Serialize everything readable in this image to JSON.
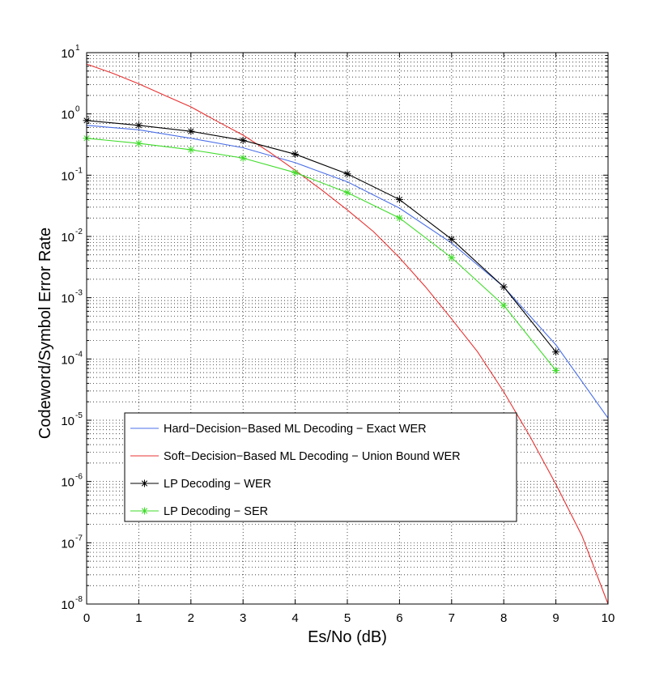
{
  "chart_data": {
    "type": "line",
    "title": "",
    "xlabel": "Es/No (dB)",
    "ylabel": "Codeword/Symbol Error Rate",
    "xlim": [
      0,
      10
    ],
    "ylim": [
      1e-08,
      10
    ],
    "yscale": "log",
    "grid": true,
    "x_ticks": [
      "0",
      "1",
      "2",
      "3",
      "4",
      "5",
      "6",
      "7",
      "8",
      "9",
      "10"
    ],
    "y_ticks": [
      {
        "base": "10",
        "exp": "1"
      },
      {
        "base": "10",
        "exp": "0"
      },
      {
        "base": "10",
        "exp": "-1"
      },
      {
        "base": "10",
        "exp": "-2"
      },
      {
        "base": "10",
        "exp": "-3"
      },
      {
        "base": "10",
        "exp": "-4"
      },
      {
        "base": "10",
        "exp": "-5"
      },
      {
        "base": "10",
        "exp": "-6"
      },
      {
        "base": "10",
        "exp": "-7"
      },
      {
        "base": "10",
        "exp": "-8"
      }
    ],
    "legend_position": "bottom-center",
    "series": [
      {
        "name": "Hard−Decision−Based ML Decoding − Exact WER",
        "color": "#4a6fe8",
        "marker": "none",
        "x": [
          0,
          1,
          2,
          3,
          4,
          5,
          6,
          7,
          8,
          9,
          10
        ],
        "y": [
          0.65,
          0.55,
          0.4,
          0.28,
          0.16,
          0.078,
          0.029,
          0.0078,
          0.0015,
          0.00017,
          1.08e-05
        ]
      },
      {
        "name": "Soft−Decision−Based ML Decoding − Union Bound WER",
        "color": "#e83030",
        "marker": "none",
        "x": [
          0,
          0.5,
          1,
          1.5,
          2,
          2.5,
          3,
          3.5,
          4,
          4.5,
          5,
          5.5,
          6,
          6.5,
          7,
          7.5,
          8,
          8.5,
          9,
          9.5,
          10
        ],
        "y": [
          6.5,
          4.6,
          3.1,
          2.0,
          1.3,
          0.76,
          0.45,
          0.24,
          0.12,
          0.058,
          0.027,
          0.012,
          0.0045,
          0.0015,
          0.00045,
          0.00013,
          2.9e-05,
          5.5e-06,
          9e-07,
          1.3e-07,
          1e-08
        ]
      },
      {
        "name": "LP Decoding − WER",
        "color": "#000000",
        "marker": "*",
        "x": [
          0,
          1,
          2,
          3,
          4,
          5,
          6,
          7,
          8,
          9
        ],
        "y": [
          0.78,
          0.65,
          0.52,
          0.37,
          0.22,
          0.105,
          0.04,
          0.009,
          0.0015,
          0.00013
        ]
      },
      {
        "name": "LP Decoding − SER",
        "color": "#3fdc2a",
        "marker": "*",
        "x": [
          0,
          1,
          2,
          3,
          4,
          5,
          6,
          7,
          8,
          9
        ],
        "y": [
          0.4,
          0.33,
          0.26,
          0.19,
          0.11,
          0.052,
          0.02,
          0.0045,
          0.00075,
          6.5e-05
        ]
      }
    ]
  }
}
